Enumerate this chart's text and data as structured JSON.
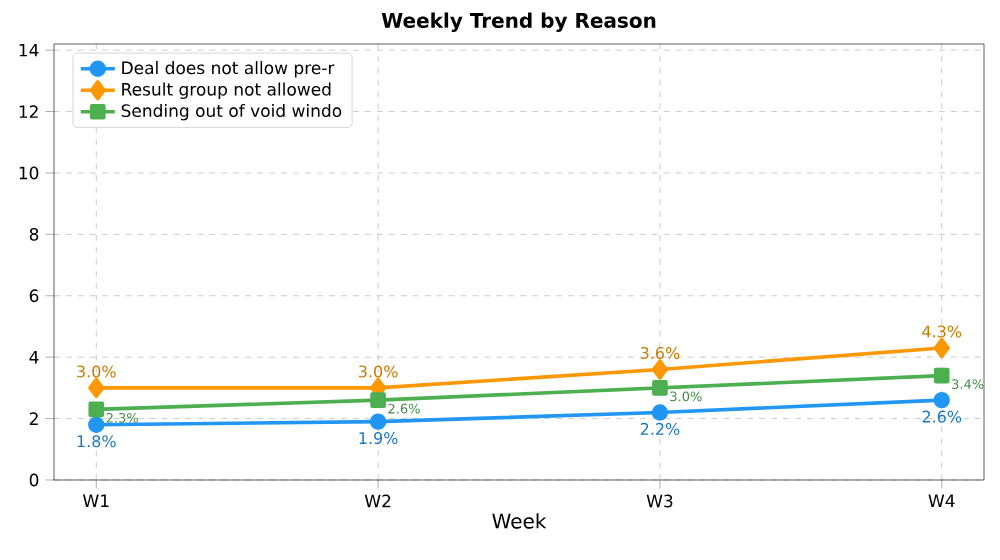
{
  "chart_data": {
    "type": "line",
    "title": "Weekly Trend by Reason",
    "xlabel": "Week",
    "categories": [
      "W1",
      "W2",
      "W3",
      "W4"
    ],
    "series": [
      {
        "name": "Deal does not allow pre-r",
        "color": "#2196f3",
        "marker": "circle",
        "values": [
          1.8,
          1.9,
          2.2,
          2.6
        ],
        "value_labels": [
          "1.8%",
          "1.9%",
          "2.2%",
          "2.6%"
        ]
      },
      {
        "name": "Result group not allowed",
        "color": "#ff9800",
        "marker": "diamond",
        "values": [
          3.0,
          3.0,
          3.6,
          4.3
        ],
        "value_labels": [
          "3.0%",
          "3.0%",
          "3.6%",
          "4.3%"
        ]
      },
      {
        "name": "Sending out of void windo",
        "color": "#4caf50",
        "marker": "square",
        "values": [
          2.3,
          2.6,
          3.0,
          3.4
        ],
        "value_labels": [
          "2.3%",
          "2.6%",
          "3.0%",
          "3.4%"
        ]
      }
    ],
    "ylim": [
      0,
      14.2
    ],
    "yticks": [
      0,
      2,
      4,
      6,
      8,
      10,
      12,
      14
    ],
    "grid": true,
    "legend": "top left",
    "line_style": "solid"
  }
}
